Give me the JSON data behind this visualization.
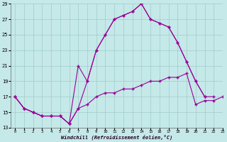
{
  "xlabel": "Windchill (Refroidissement éolien,°C)",
  "xlim": [
    -0.5,
    23
  ],
  "ylim": [
    13,
    29
  ],
  "xticks": [
    0,
    1,
    2,
    3,
    4,
    5,
    6,
    7,
    8,
    9,
    10,
    11,
    12,
    13,
    14,
    15,
    16,
    17,
    18,
    19,
    20,
    21,
    22,
    23
  ],
  "yticks": [
    13,
    15,
    17,
    19,
    21,
    23,
    25,
    27,
    29
  ],
  "bg_color": "#c5e8e8",
  "line_color": "#990099",
  "grid_color": "#a0cccc",
  "line1": {
    "x": [
      0,
      1,
      2,
      3,
      4,
      5,
      6,
      7,
      8,
      9,
      10,
      11,
      12,
      13,
      14,
      15,
      16,
      17,
      18,
      19,
      20,
      21,
      22,
      23
    ],
    "y": [
      17,
      15.5,
      15,
      14.5,
      14.5,
      14.5,
      13.5,
      15.5,
      16,
      17,
      17.5,
      17.5,
      18,
      18,
      18.5,
      19,
      19,
      19.5,
      19.5,
      20,
      16,
      16.5,
      16.5,
      17
    ]
  },
  "line2": {
    "x": [
      0,
      1,
      2,
      3,
      4,
      5,
      6,
      7,
      8,
      9,
      10,
      11,
      12,
      13,
      14,
      15,
      16,
      17,
      18,
      19,
      20,
      21,
      22,
      23
    ],
    "y": [
      17,
      15.5,
      15,
      14.5,
      14.5,
      14.5,
      13.5,
      15.5,
      19,
      23,
      25,
      27,
      27.5,
      28,
      29,
      27,
      26.5,
      26,
      24,
      21.5,
      19,
      17,
      17,
      null
    ]
  },
  "line3": {
    "x": [
      0,
      1,
      2,
      3,
      4,
      5,
      6,
      7,
      8,
      9,
      10,
      11,
      12,
      13,
      14,
      15,
      16,
      17,
      18,
      19,
      20,
      21,
      22,
      23
    ],
    "y": [
      17,
      15.5,
      15,
      14.5,
      14.5,
      14.5,
      13.5,
      21,
      19,
      23,
      25,
      27,
      27.5,
      28,
      29,
      27,
      26.5,
      26,
      24,
      21.5,
      19,
      17,
      null,
      null
    ]
  }
}
